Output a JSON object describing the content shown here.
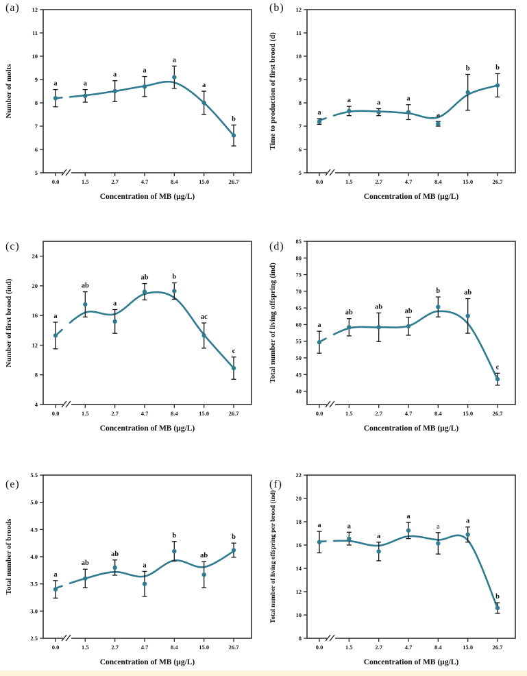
{
  "figure": {
    "background": "#ffffff",
    "line_color": "#2e7a8f",
    "marker_color": "#2e7a8f",
    "error_bar_color": "#111111",
    "axis_color": "#222222",
    "bottom_strip_color": "#fbf4da",
    "x_axis_label": "Concentration of MB (µg/L)"
  },
  "chart_data": [
    {
      "type": "line",
      "panel_label": "(a)",
      "ylabel": "Number of molts",
      "xlabel": "Concentration of MB (µg/L)",
      "categories": [
        "0.0",
        "1.5",
        "2.7",
        "4.7",
        "8.4",
        "15.0",
        "26.7"
      ],
      "x_axis_break_after_first": true,
      "ylim": [
        5,
        12
      ],
      "yticks": [
        "5",
        "6",
        "7",
        "8",
        "9",
        "10",
        "11",
        "12"
      ],
      "values": [
        8.2,
        8.3,
        8.5,
        8.7,
        9.1,
        8.0,
        6.6
      ],
      "errors": [
        0.37,
        0.27,
        0.45,
        0.43,
        0.48,
        0.5,
        0.45
      ],
      "sig_letters": [
        "a",
        "a",
        "a",
        "a",
        "a",
        "a",
        "b"
      ],
      "curve_fit": [
        8.2,
        8.32,
        8.5,
        8.72,
        8.87,
        8.0,
        6.6
      ],
      "light_letter_indices": []
    },
    {
      "type": "line",
      "panel_label": "(b)",
      "ylabel": "Time to production of first brood (d)",
      "xlabel": "Concentration of MB (µg/L)",
      "categories": [
        "0.0",
        "1.5",
        "2.7",
        "4.7",
        "8.4",
        "15.0",
        "26.7"
      ],
      "x_axis_break_after_first": true,
      "ylim": [
        5,
        12
      ],
      "yticks": [
        "5",
        "6",
        "7",
        "8",
        "9",
        "10",
        "11",
        "12"
      ],
      "values": [
        7.2,
        7.65,
        7.6,
        7.6,
        7.1,
        8.45,
        8.75
      ],
      "errors": [
        0.12,
        0.2,
        0.15,
        0.32,
        0.1,
        0.77,
        0.5
      ],
      "sig_letters": [
        "a",
        "a",
        "a",
        "a",
        "a",
        "b",
        "b"
      ],
      "curve_fit": [
        7.25,
        7.62,
        7.63,
        7.55,
        7.38,
        8.35,
        8.75
      ],
      "light_letter_indices": []
    },
    {
      "type": "line",
      "panel_label": "(c)",
      "ylabel": "Number of first brood (ind)",
      "xlabel": "Concentration of MB (µg/L)",
      "categories": [
        "0.0",
        "1.5",
        "2.7",
        "4.7",
        "8.4",
        "15.0",
        "26.7"
      ],
      "x_axis_break_after_first": true,
      "ylim": [
        4,
        26
      ],
      "yticks": [
        "4",
        "8",
        "12",
        "16",
        "20",
        "24"
      ],
      "values": [
        13.3,
        17.5,
        15.2,
        19.2,
        19.3,
        13.3,
        8.9
      ],
      "errors": [
        1.8,
        1.7,
        1.6,
        1.1,
        1.1,
        1.7,
        1.5
      ],
      "sig_letters": [
        "a",
        "ab",
        "a",
        "ab",
        "b",
        "ac",
        "c"
      ],
      "curve_fit": [
        13.3,
        16.4,
        16.2,
        18.9,
        18.4,
        13.4,
        8.9
      ],
      "light_letter_indices": []
    },
    {
      "type": "line",
      "panel_label": "(d)",
      "ylabel": "Total number of living offspring (ind)",
      "xlabel": "Concentration of MB (µg/L)",
      "categories": [
        "0.0",
        "1.5",
        "2.7",
        "4.7",
        "8.4",
        "15.0",
        "26.7"
      ],
      "x_axis_break_after_first": true,
      "ylim": [
        36,
        85
      ],
      "yticks": [
        "40",
        "45",
        "50",
        "55",
        "60",
        "65",
        "70",
        "75",
        "80",
        "85"
      ],
      "values": [
        54.7,
        59.2,
        59.2,
        59.5,
        65.3,
        62.6,
        43.6
      ],
      "errors": [
        3.3,
        2.6,
        4.3,
        2.7,
        3.0,
        5.2,
        1.8
      ],
      "sig_letters": [
        "a",
        "ab",
        "ab",
        "ab",
        "b",
        "ab",
        "c"
      ],
      "curve_fit": [
        54.8,
        58.9,
        59.2,
        59.6,
        64.0,
        60.3,
        43.6
      ],
      "light_letter_indices": []
    },
    {
      "type": "line",
      "panel_label": "(e)",
      "ylabel": "Total number of broods",
      "xlabel": "Concentration of MB (µg/L)",
      "categories": [
        "0.0",
        "1.5",
        "2.7",
        "4.7",
        "8.4",
        "15.0",
        "26.7"
      ],
      "x_axis_break_after_first": true,
      "ylim": [
        2.5,
        5.5
      ],
      "yticks": [
        "2.5",
        "3.0",
        "3.5",
        "4.0",
        "4.5",
        "5.0",
        "5.5"
      ],
      "values": [
        3.4,
        3.6,
        3.8,
        3.5,
        4.1,
        3.67,
        4.12
      ],
      "errors": [
        0.16,
        0.17,
        0.14,
        0.23,
        0.18,
        0.24,
        0.13
      ],
      "sig_letters": [
        "a",
        "ab",
        "ab",
        "a",
        "b",
        "ab",
        "b"
      ],
      "curve_fit": [
        3.42,
        3.6,
        3.72,
        3.64,
        3.93,
        3.81,
        4.1
      ],
      "light_letter_indices": []
    },
    {
      "type": "line",
      "panel_label": "(f)",
      "ylabel": "Total number of living offspring per brood (ind)",
      "xlabel": "Concentration of MB (µg/L)",
      "categories": [
        "0.0",
        "1.5",
        "2.7",
        "4.7",
        "8.4",
        "15.0",
        "26.7"
      ],
      "x_axis_break_after_first": true,
      "ylim": [
        8,
        22
      ],
      "yticks": [
        "8",
        "10",
        "12",
        "14",
        "16",
        "18",
        "20",
        "22"
      ],
      "values": [
        16.25,
        16.55,
        15.45,
        17.25,
        16.15,
        16.9,
        10.6
      ],
      "errors": [
        0.92,
        0.55,
        0.8,
        0.7,
        0.92,
        0.65,
        0.45
      ],
      "sig_letters": [
        "a",
        "a",
        "a",
        "a",
        "a",
        "a",
        "b"
      ],
      "curve_fit": [
        16.3,
        16.35,
        15.95,
        16.75,
        16.45,
        16.4,
        10.6
      ],
      "light_letter_indices": [
        4
      ]
    }
  ]
}
